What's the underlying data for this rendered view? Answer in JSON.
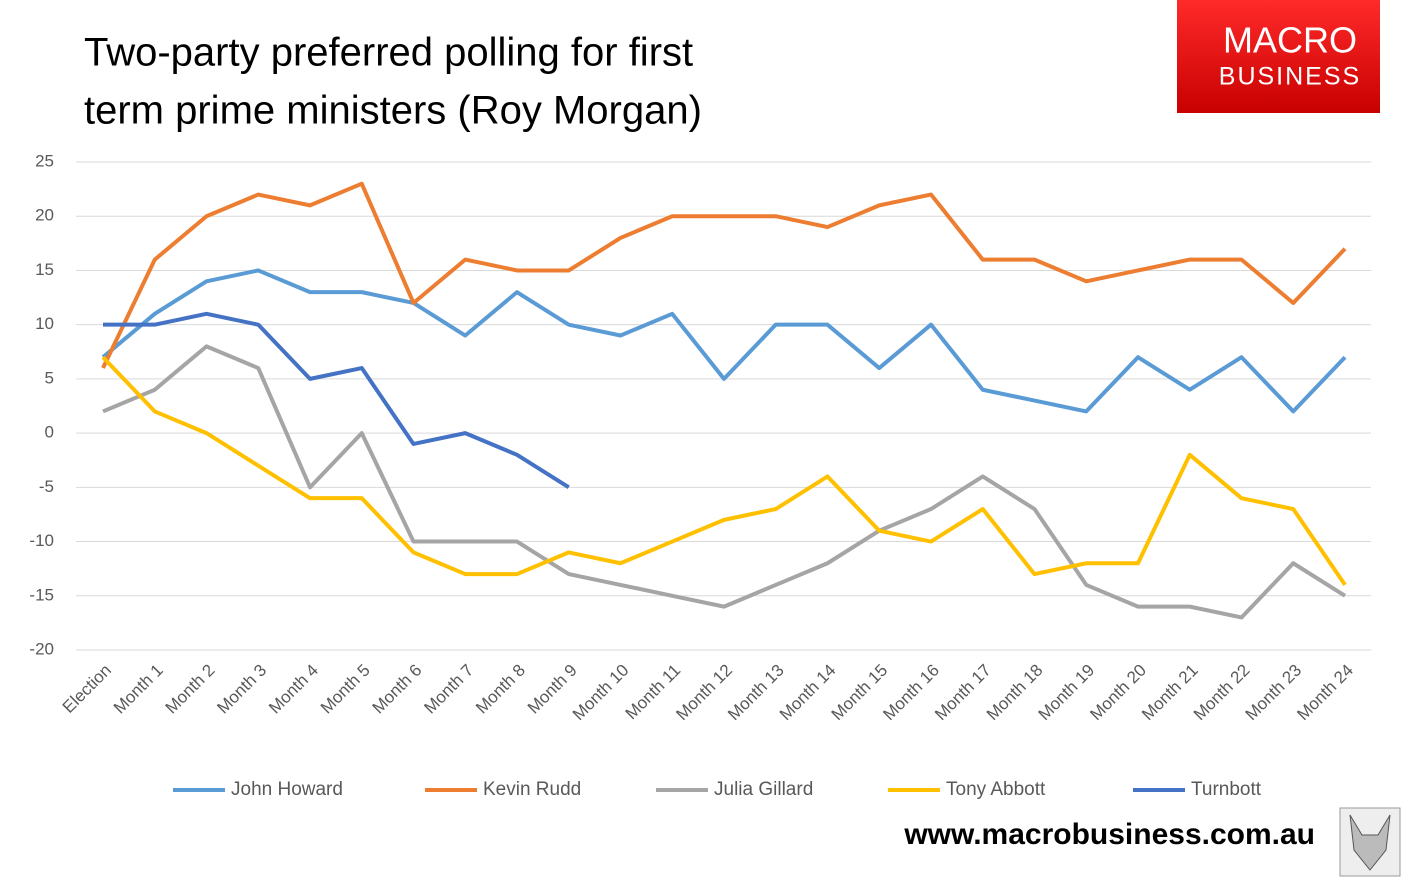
{
  "chart_data": {
    "type": "line",
    "title": [
      "Two-party preferred polling for first",
      "term prime ministers (Roy Morgan)"
    ],
    "logo": [
      "MACRO",
      "BUSINESS"
    ],
    "website": "www.macrobusiness.com.au",
    "categories": [
      "Election",
      "Month 1",
      "Month 2",
      "Month 3",
      "Month 4",
      "Month 5",
      "Month 6",
      "Month 7",
      "Month 8",
      "Month 9",
      "Month 10",
      "Month 11",
      "Month 12",
      "Month 13",
      "Month 14",
      "Month 15",
      "Month 16",
      "Month 17",
      "Month 18",
      "Month 19",
      "Month 20",
      "Month 21",
      "Month 22",
      "Month 23",
      "Month 24"
    ],
    "series": [
      {
        "name": "John Howard",
        "color": "#5b9bd5",
        "values": [
          7,
          11,
          14,
          15,
          13,
          13,
          12,
          9,
          13,
          10,
          9,
          11,
          5,
          10,
          10,
          6,
          10,
          4,
          3,
          2,
          7,
          4,
          7,
          2,
          7
        ]
      },
      {
        "name": "Kevin Rudd",
        "color": "#ed7d31",
        "values": [
          6,
          16,
          20,
          22,
          21,
          23,
          12,
          16,
          15,
          15,
          18,
          20,
          20,
          20,
          19,
          21,
          22,
          16,
          16,
          14,
          15,
          16,
          16,
          12,
          17
        ]
      },
      {
        "name": "Julia Gillard",
        "color": "#a5a5a5",
        "values": [
          2,
          4,
          8,
          6,
          -5,
          0,
          -10,
          -10,
          -10,
          -13,
          -14,
          -15,
          -16,
          -14,
          -12,
          -9,
          -7,
          -4,
          -7,
          -14,
          -16,
          -16,
          -17,
          -12,
          -15
        ]
      },
      {
        "name": "Tony Abbott",
        "color": "#ffc000",
        "values": [
          7,
          2,
          0,
          -3,
          -6,
          -6,
          -11,
          -13,
          -13,
          -11,
          -12,
          -10,
          -8,
          -7,
          -4,
          -9,
          -10,
          -7,
          -13,
          -12,
          -12,
          -2,
          -6,
          -7,
          -14
        ]
      },
      {
        "name": "Turnbott",
        "color": "#4472c4",
        "values": [
          10,
          10,
          11,
          10,
          5,
          6,
          -1,
          0,
          -2,
          -5,
          null,
          null,
          null,
          null,
          null,
          null,
          null,
          null,
          null,
          null,
          null,
          null,
          null,
          null,
          null
        ]
      }
    ],
    "ylim": [
      -20,
      25
    ],
    "yticks": [
      -20,
      -15,
      -10,
      -5,
      0,
      5,
      10,
      15,
      20,
      25
    ],
    "grid": true,
    "legend": "bottom"
  }
}
